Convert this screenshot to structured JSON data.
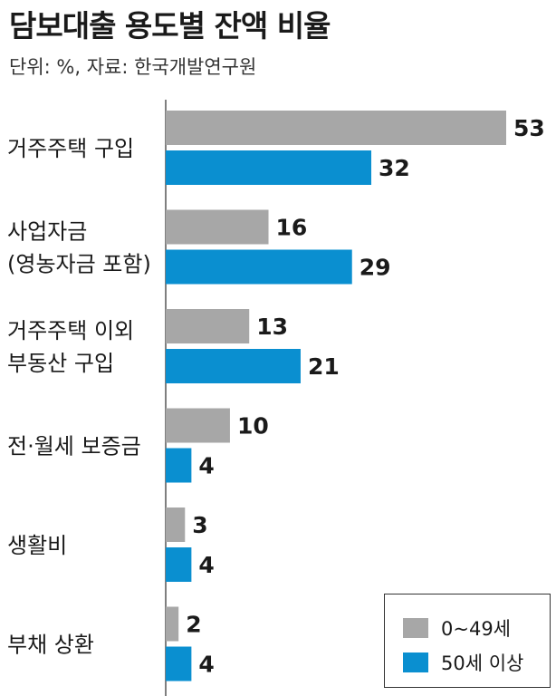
{
  "title": "담보대출 용도별 잔액 비율",
  "unit_note": "단위: %, 자료: 한국개발연구원",
  "colors": {
    "series_0_49": "#a7a7a7",
    "series_50_plus": "#0a8fd0"
  },
  "chart_data": {
    "type": "bar",
    "orientation": "horizontal",
    "title": "담보대출 용도별 잔액 비율",
    "categories": [
      [
        "거주주택 구입"
      ],
      [
        "사업자금",
        "(영농자금 포함)"
      ],
      [
        "거주주택 이외",
        "부동산 구입"
      ],
      [
        "전·월세 보증금"
      ],
      [
        "생활비"
      ],
      [
        "부채 상환"
      ]
    ],
    "series": [
      {
        "name": "0~49세",
        "values": [
          53,
          16,
          13,
          10,
          3,
          2
        ]
      },
      {
        "name": "50세 이상",
        "values": [
          32,
          29,
          21,
          4,
          4,
          4
        ]
      }
    ],
    "xlim": [
      0,
      53
    ],
    "legend_position": "bottom-right",
    "grid": false
  },
  "legend": {
    "item_0": "0~49세",
    "item_1": "50세 이상"
  }
}
